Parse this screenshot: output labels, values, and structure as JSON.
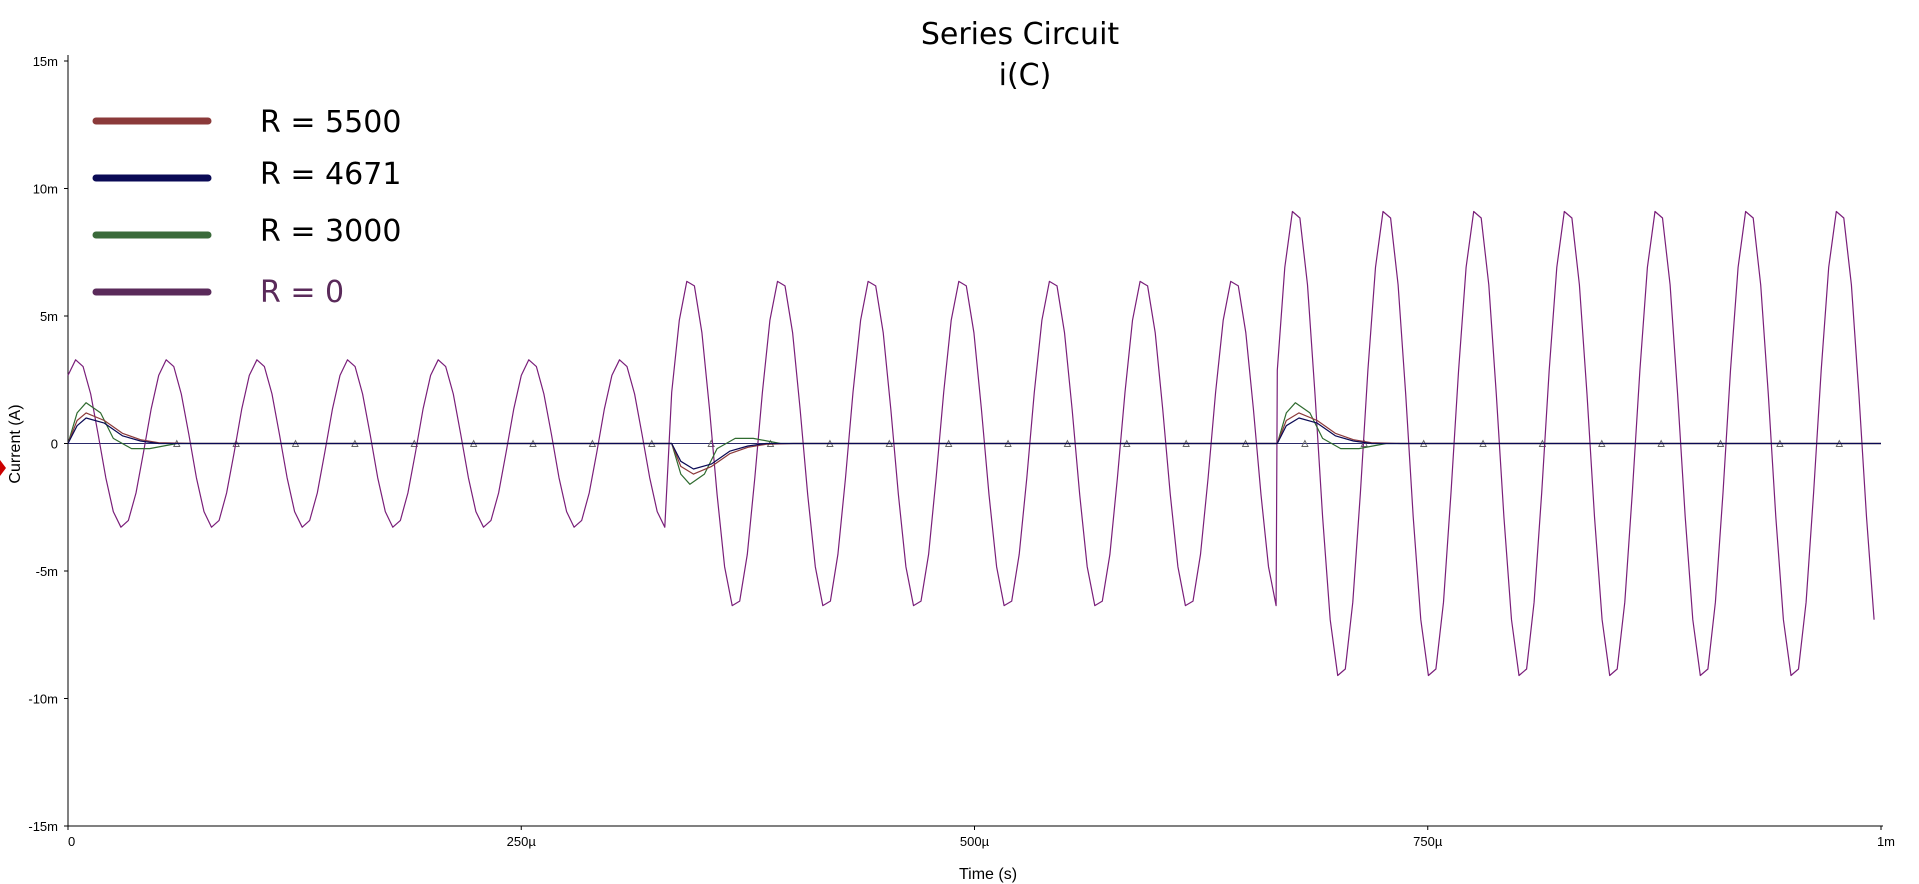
{
  "chart_data": {
    "type": "line",
    "title": "Series Circuit",
    "subtitle": "i(C)",
    "xlabel": "Time (s)",
    "ylabel": "Current (A)",
    "xlim": [
      0,
      0.001
    ],
    "ylim": [
      -0.015,
      0.015
    ],
    "x_ticks": [
      {
        "value": 0,
        "label": "0"
      },
      {
        "value": 0.00025,
        "label": "250µ"
      },
      {
        "value": 0.0005,
        "label": "500µ"
      },
      {
        "value": 0.00075,
        "label": "750µ"
      },
      {
        "value": 0.001,
        "label": "1m"
      }
    ],
    "y_ticks": [
      {
        "value": 0.015,
        "label": "15m"
      },
      {
        "value": 0.01,
        "label": "10m"
      },
      {
        "value": 0.005,
        "label": "5m"
      },
      {
        "value": 0,
        "label": "0"
      },
      {
        "value": -0.005,
        "label": "-5m"
      },
      {
        "value": -0.01,
        "label": "-10m"
      },
      {
        "value": -0.015,
        "label": "-15m"
      }
    ],
    "grid": false,
    "legend_position": "top-left",
    "series": [
      {
        "name": "R = 5500",
        "color": "#8b3a3a",
        "points": [
          [
            0,
            0
          ],
          [
            5e-06,
            0.0009
          ],
          [
            1e-05,
            0.0012
          ],
          [
            2e-05,
            0.0009
          ],
          [
            3e-05,
            0.0004
          ],
          [
            4e-05,
            0.00015
          ],
          [
            5e-05,
            3e-05
          ],
          [
            7e-05,
            0
          ],
          [
            0.000333,
            0
          ],
          [
            0.000338,
            -0.0009
          ],
          [
            0.000345,
            -0.0012
          ],
          [
            0.000355,
            -0.0009
          ],
          [
            0.000365,
            -0.0004
          ],
          [
            0.000375,
            -0.00015
          ],
          [
            0.000385,
            -3e-05
          ],
          [
            0.0004,
            0
          ],
          [
            0.000667,
            0
          ],
          [
            0.000672,
            0.0009
          ],
          [
            0.000679,
            0.0012
          ],
          [
            0.000689,
            0.0009
          ],
          [
            0.000699,
            0.0004
          ],
          [
            0.000709,
            0.00015
          ],
          [
            0.000719,
            3e-05
          ],
          [
            0.000735,
            0
          ],
          [
            0.001,
            0
          ]
        ]
      },
      {
        "name": "R = 4671",
        "color": "#0a0a55",
        "points": [
          [
            0,
            0
          ],
          [
            5e-06,
            0.0007
          ],
          [
            1e-05,
            0.001
          ],
          [
            2e-05,
            0.0008
          ],
          [
            3e-05,
            0.0003
          ],
          [
            4e-05,
            0.0001
          ],
          [
            5e-05,
            0
          ],
          [
            7e-05,
            0
          ],
          [
            0.000333,
            0
          ],
          [
            0.000338,
            -0.0007
          ],
          [
            0.000345,
            -0.001
          ],
          [
            0.000355,
            -0.0008
          ],
          [
            0.000365,
            -0.0003
          ],
          [
            0.000375,
            -0.0001
          ],
          [
            0.000385,
            0
          ],
          [
            0.0004,
            0
          ],
          [
            0.000667,
            0
          ],
          [
            0.000672,
            0.0007
          ],
          [
            0.000679,
            0.001
          ],
          [
            0.000689,
            0.0008
          ],
          [
            0.000699,
            0.0003
          ],
          [
            0.000709,
            0.0001
          ],
          [
            0.000719,
            0
          ],
          [
            0.000735,
            0
          ],
          [
            0.001,
            0
          ]
        ]
      },
      {
        "name": "R = 3000",
        "color": "#2f6b2f",
        "points": [
          [
            0,
            0
          ],
          [
            5e-06,
            0.0012
          ],
          [
            1e-05,
            0.0016
          ],
          [
            1.8e-05,
            0.0012
          ],
          [
            2.5e-05,
            0.0002
          ],
          [
            3.5e-05,
            -0.0002
          ],
          [
            4.5e-05,
            -0.0002
          ],
          [
            6e-05,
            0
          ],
          [
            7e-05,
            0
          ],
          [
            0.000333,
            0
          ],
          [
            0.000338,
            -0.0012
          ],
          [
            0.000343,
            -0.0016
          ],
          [
            0.000351,
            -0.0012
          ],
          [
            0.000358,
            -0.0002
          ],
          [
            0.000368,
            0.0002
          ],
          [
            0.000378,
            0.0002
          ],
          [
            0.000393,
            0
          ],
          [
            0.0004,
            0
          ],
          [
            0.000667,
            0
          ],
          [
            0.000672,
            0.0012
          ],
          [
            0.000677,
            0.0016
          ],
          [
            0.000685,
            0.0012
          ],
          [
            0.000692,
            0.0002
          ],
          [
            0.000702,
            -0.0002
          ],
          [
            0.000712,
            -0.0002
          ],
          [
            0.000727,
            0
          ],
          [
            0.000735,
            0
          ],
          [
            0.001,
            0
          ]
        ]
      },
      {
        "name": "R = 0",
        "color": "#7a1f7a",
        "segments": [
          {
            "from": 0,
            "to": 0.000333,
            "amplitude": 0.0033,
            "offset": 5e-06
          },
          {
            "from": 0.000333,
            "to": 0.000667,
            "amplitude": 0.0065,
            "offset": 0.000343
          },
          {
            "from": 0.000667,
            "to": 0.001,
            "amplitude": 0.0093,
            "offset": 0.000677
          }
        ],
        "period": 5e-05
      }
    ]
  },
  "legend": {
    "items": [
      {
        "label": "R = 5500",
        "color": "#8b3a3a"
      },
      {
        "label": "R = 4671",
        "color": "#0a0a55"
      },
      {
        "label": "R = 3000",
        "color": "#3a6a3a"
      },
      {
        "label": "R = 0",
        "color": "#5a2a5a"
      }
    ]
  },
  "marker_color": "#cc0000"
}
